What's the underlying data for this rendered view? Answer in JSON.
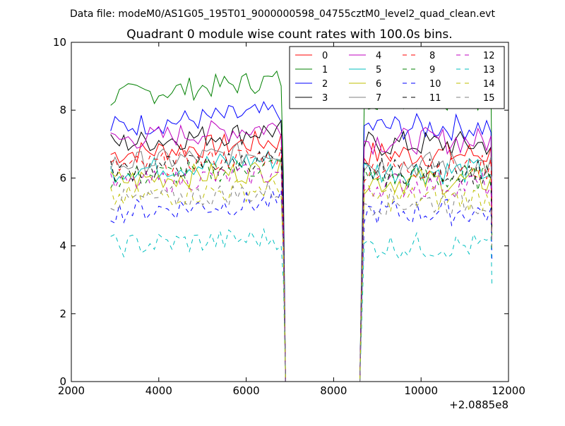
{
  "chart_data": {
    "type": "line",
    "suptitle": "Data file: modeM0/AS1G05_195T01_9000000598_04755cztM0_level2_quad_clean.evt",
    "title": "Quadrant 0 module wise count rates with 100.0s bins.",
    "xlabel": "",
    "ylabel": "",
    "x_offset_label": "+2.0885e8",
    "xlim": [
      2000,
      12000
    ],
    "ylim": [
      0,
      10
    ],
    "xticks": [
      "2000",
      "4000",
      "6000",
      "8000",
      "10000",
      "12000"
    ],
    "yticks": [
      "0",
      "2",
      "4",
      "6",
      "8",
      "10"
    ],
    "grid": false,
    "legend_position": "top-right",
    "gap": {
      "start": 6900,
      "end": 8600
    },
    "segments": [
      {
        "start": 2900,
        "end": 6800,
        "step": 100
      },
      {
        "start": 8700,
        "end": 11600,
        "step": 100
      }
    ],
    "series": [
      {
        "name": "0",
        "color": "#ff0000",
        "dash": "solid",
        "level": 6.7
      },
      {
        "name": "1",
        "color": "#008000",
        "dash": "solid",
        "level": 8.4
      },
      {
        "name": "2",
        "color": "#0000ff",
        "dash": "solid",
        "level": 7.5
      },
      {
        "name": "3",
        "color": "#000000",
        "dash": "solid",
        "level": 7.0
      },
      {
        "name": "4",
        "color": "#bf00bf",
        "dash": "solid",
        "level": 7.1
      },
      {
        "name": "5",
        "color": "#00bfbf",
        "dash": "solid",
        "level": 6.2
      },
      {
        "name": "6",
        "color": "#bfbf00",
        "dash": "solid",
        "level": 5.9
      },
      {
        "name": "7",
        "color": "#808080",
        "dash": "solid",
        "level": 6.4
      },
      {
        "name": "8",
        "color": "#ff0000",
        "dash": "dashed",
        "level": 6.3
      },
      {
        "name": "9",
        "color": "#008000",
        "dash": "dashed",
        "level": 6.0
      },
      {
        "name": "10",
        "color": "#0000ff",
        "dash": "dashed",
        "level": 5.0
      },
      {
        "name": "11",
        "color": "#000000",
        "dash": "dashed",
        "level": 6.2
      },
      {
        "name": "12",
        "color": "#bf00bf",
        "dash": "dashed",
        "level": 5.8
      },
      {
        "name": "13",
        "color": "#00bfbf",
        "dash": "dashed",
        "level": 4.0
      },
      {
        "name": "14",
        "color": "#bfbf00",
        "dash": "dashed",
        "level": 5.4
      },
      {
        "name": "15",
        "color": "#808080",
        "dash": "dashed",
        "level": 5.3
      }
    ]
  }
}
